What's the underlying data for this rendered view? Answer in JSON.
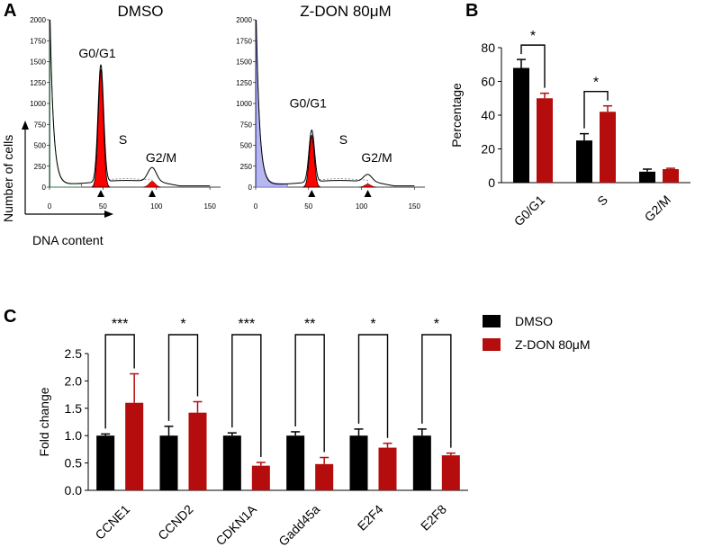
{
  "colors": {
    "control": "#000000",
    "treatment": "#b50d0d",
    "g1_peak": "#ff0000",
    "fit_blue": "#b7b7ef",
    "fit_green": "#2e8b57"
  },
  "panel_a": {
    "letter": "A",
    "xlabel": "DNA content",
    "ylabel": "Number of cells",
    "histograms": [
      {
        "title": "DMSO",
        "labels": {
          "g0g1": "G0/G1",
          "s": "S",
          "g2m": "G2/M"
        },
        "xticks": [
          0,
          50,
          100,
          150
        ],
        "yticks": [
          0,
          250,
          500,
          750,
          1000,
          1250,
          1500,
          1750,
          2000
        ],
        "xlim": [
          0,
          160
        ],
        "ylim": [
          0,
          2000
        ],
        "peak_g1": 1400,
        "peak_g2": 170,
        "debris_peak": 2000
      },
      {
        "title": "Z-DON 80μM",
        "labels": {
          "g0g1": "G0/G1",
          "s": "S",
          "g2m": "G2/M"
        },
        "xticks": [
          0,
          50,
          100,
          150
        ],
        "yticks": [
          0,
          250,
          500,
          750,
          1000,
          1250,
          1500,
          1750,
          2000
        ],
        "xlim": [
          0,
          160
        ],
        "ylim": [
          0,
          2000
        ],
        "peak_g1": 620,
        "peak_g2": 90,
        "debris_peak": 2000
      }
    ]
  },
  "chart_data": [
    {
      "panel": "B",
      "type": "bar",
      "categories": [
        "G0/G1",
        "S",
        "G2/M"
      ],
      "series": [
        {
          "name": "DMSO",
          "values": [
            68,
            25,
            6.5
          ],
          "errors": [
            5,
            4,
            1.5
          ]
        },
        {
          "name": "Z-DON 80μM",
          "values": [
            50,
            42,
            8
          ],
          "errors": [
            3,
            3.5,
            0.5
          ]
        }
      ],
      "xlabel": "",
      "ylabel": "Percentage",
      "ylim": [
        0,
        80
      ],
      "yticks": [
        0,
        20,
        40,
        60,
        80
      ],
      "significance": [
        {
          "category": "G0/G1",
          "label": "*"
        },
        {
          "category": "S",
          "label": "*"
        }
      ]
    },
    {
      "panel": "C",
      "type": "bar",
      "categories": [
        "CCNE1",
        "CCND2",
        "CDKN1A",
        "Gadd45a",
        "E2F4",
        "E2F8"
      ],
      "series": [
        {
          "name": "DMSO",
          "values": [
            1.0,
            1.0,
            1.0,
            1.0,
            1.0,
            1.0
          ],
          "errors": [
            0.03,
            0.17,
            0.05,
            0.07,
            0.12,
            0.12
          ]
        },
        {
          "name": "Z-DON 80μM",
          "values": [
            1.6,
            1.42,
            0.45,
            0.48,
            0.78,
            0.64
          ],
          "errors": [
            0.53,
            0.2,
            0.06,
            0.12,
            0.08,
            0.04
          ]
        }
      ],
      "xlabel": "",
      "ylabel": "Fold change",
      "ylim": [
        0,
        2.5
      ],
      "yticks": [
        "0.0",
        "0.5",
        "1.0",
        "1.5",
        "2.0",
        "2.5"
      ],
      "legend": {
        "position": "top-right",
        "entries": [
          "DMSO",
          "Z-DON 80μM"
        ]
      },
      "significance": [
        "***",
        "*",
        "***",
        "**",
        "*",
        "*"
      ]
    }
  ]
}
